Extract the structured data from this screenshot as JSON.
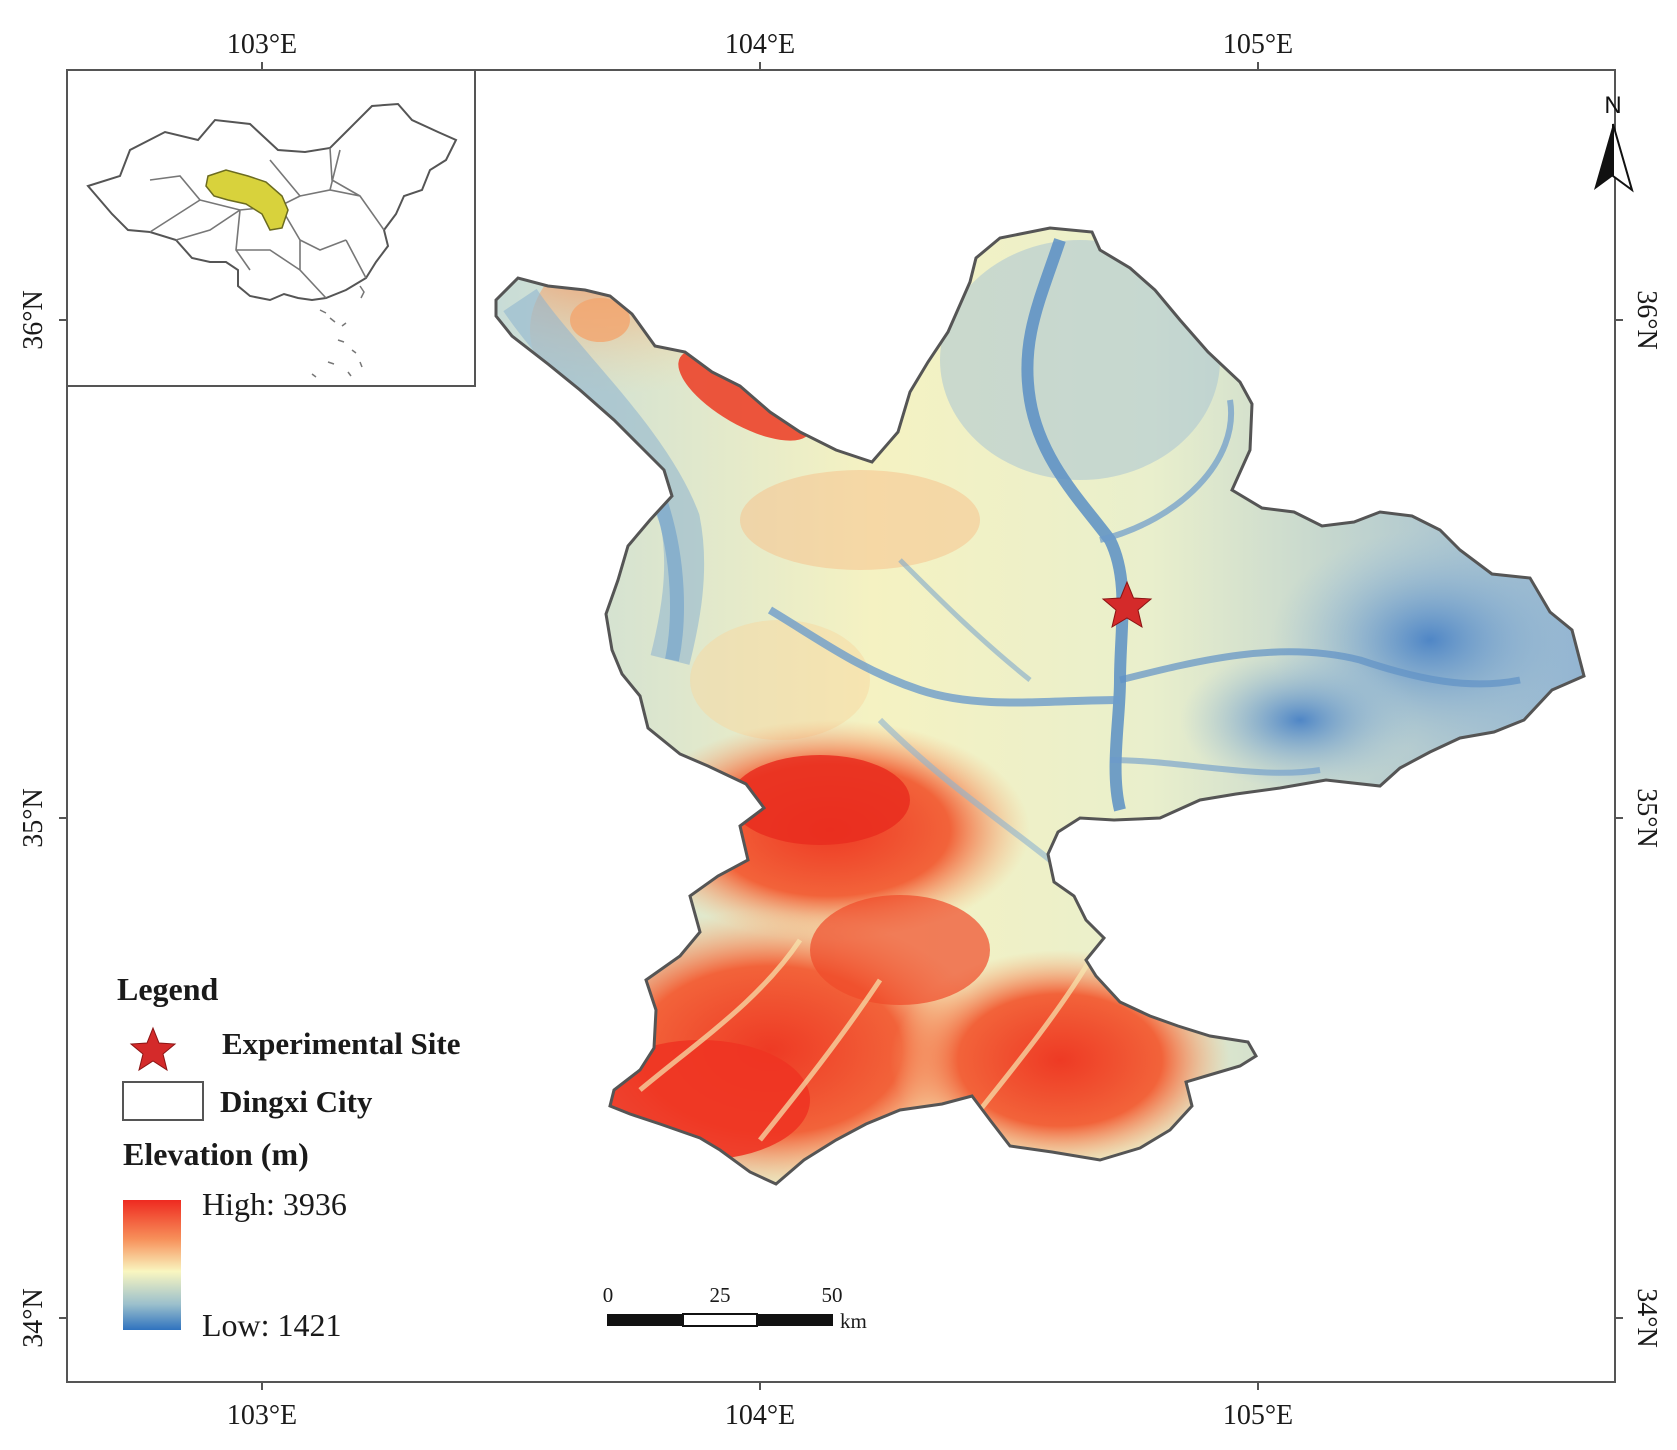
{
  "map": {
    "lon_ticks": [
      "103°E",
      "104°E",
      "105°E"
    ],
    "lat_ticks": [
      "36°N",
      "35°N",
      "34°N"
    ],
    "north_label": "N",
    "legend": {
      "title": "Legend",
      "items": [
        {
          "icon": "red-star-icon",
          "label": "Experimental Site",
          "color": "#d42a2a"
        },
        {
          "icon": "white-box-icon",
          "label": "Dingxi City"
        }
      ],
      "elevation_title": "Elevation (m)",
      "high_label": "High: 3936",
      "low_label": "Low: 1421",
      "ramp_colors": [
        "#ee2a20",
        "#f7905a",
        "#f9f6c0",
        "#9cc0cc",
        "#2f72bf"
      ]
    },
    "scale_bar": {
      "ticks": [
        "0",
        "25",
        "50"
      ],
      "unit": "km"
    },
    "inset": {
      "highlight_color": "#d8d23c"
    }
  }
}
